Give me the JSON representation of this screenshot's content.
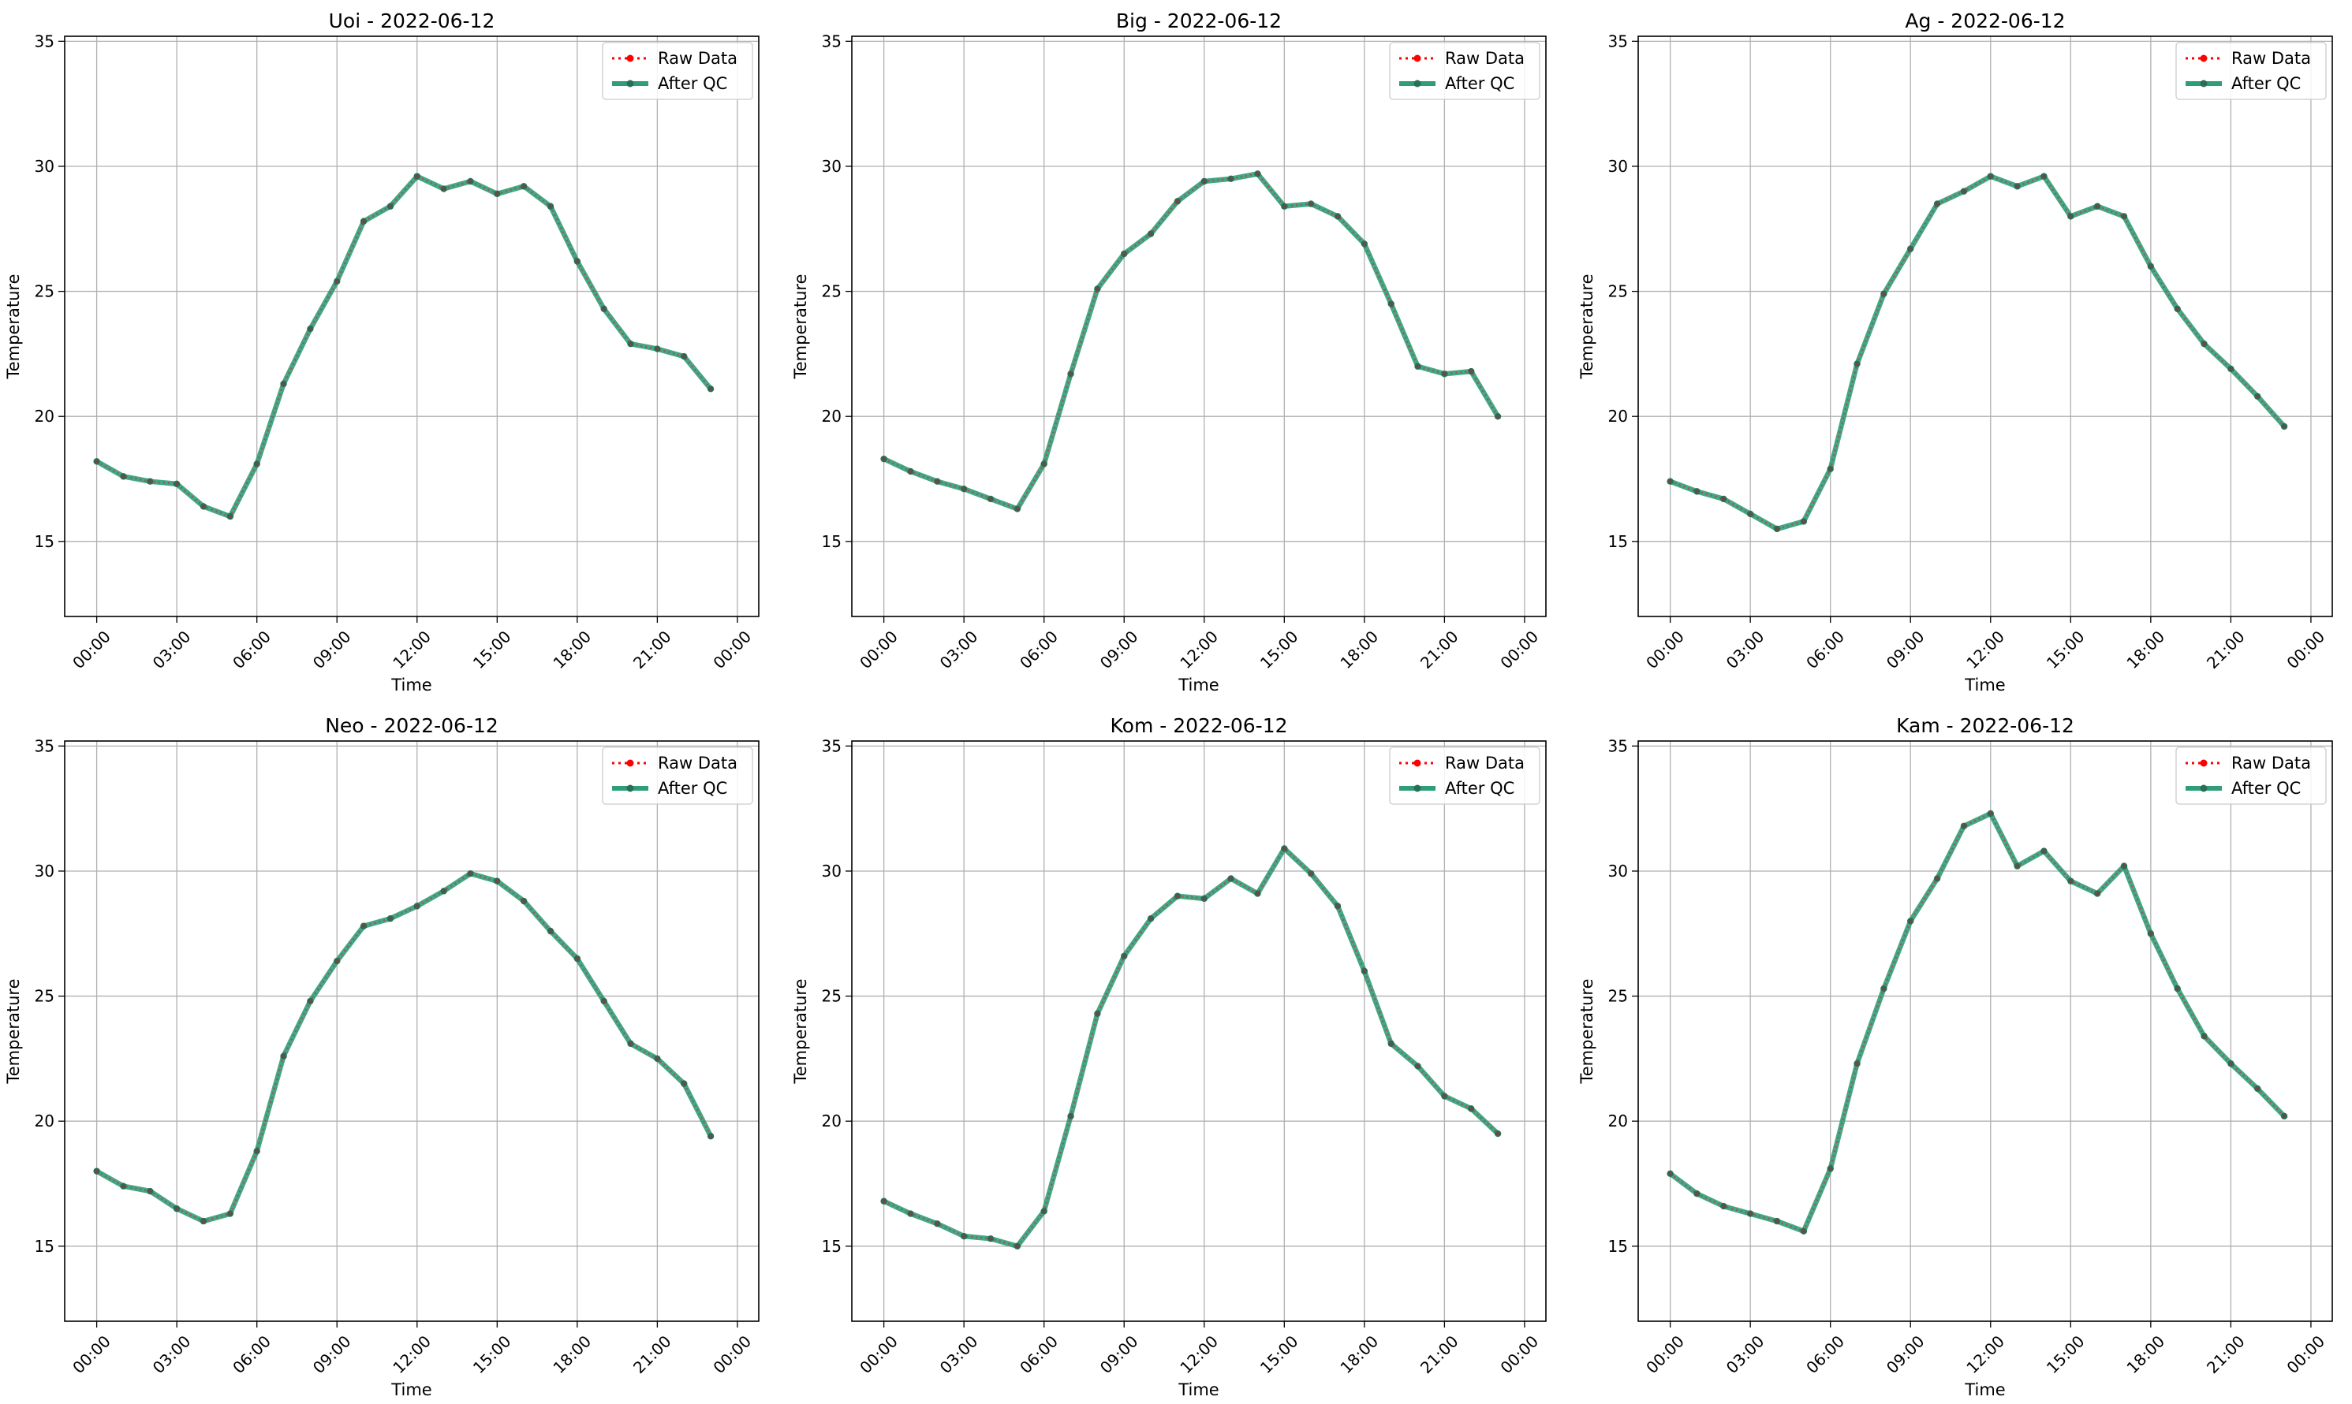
{
  "colors": {
    "raw": "#ff0000",
    "qc": "#2e9e7a",
    "qc_marker": "#2a6e5a",
    "grid": "#b0b0b0",
    "frame": "#000000"
  },
  "legend": {
    "raw_label": "Raw Data",
    "qc_label": "After QC",
    "placement": "upper right"
  },
  "chart_data": [
    {
      "type": "line",
      "title": "Uoi - 2022-06-12",
      "xlabel": "Time",
      "ylabel": "Temperature",
      "ylim": [
        12,
        35.2
      ],
      "yticks": [
        15,
        20,
        25,
        30,
        35
      ],
      "xlim_hours": [
        -1.2,
        24.8
      ],
      "xticks": [
        "00:00",
        "03:00",
        "06:00",
        "09:00",
        "12:00",
        "15:00",
        "18:00",
        "21:00",
        "00:00"
      ],
      "grid": true,
      "series": [
        {
          "name": "Raw Data",
          "values": [
            18.2,
            17.6,
            17.4,
            17.3,
            16.4,
            16.0,
            18.1,
            21.3,
            23.5,
            25.4,
            27.8,
            28.4,
            29.6,
            29.1,
            29.4,
            28.9,
            29.2,
            28.4,
            26.2,
            24.3,
            22.9,
            22.7,
            22.4,
            21.1
          ]
        },
        {
          "name": "After QC",
          "values": [
            18.2,
            17.6,
            17.4,
            17.3,
            16.4,
            16.0,
            18.1,
            21.3,
            23.5,
            25.4,
            27.8,
            28.4,
            29.6,
            29.1,
            29.4,
            28.9,
            29.2,
            28.4,
            26.2,
            24.3,
            22.9,
            22.7,
            22.4,
            21.1
          ]
        }
      ]
    },
    {
      "type": "line",
      "title": "Big - 2022-06-12",
      "xlabel": "Time",
      "ylabel": "Temperature",
      "ylim": [
        12,
        35.2
      ],
      "yticks": [
        15,
        20,
        25,
        30,
        35
      ],
      "xlim_hours": [
        -1.2,
        24.8
      ],
      "xticks": [
        "00:00",
        "03:00",
        "06:00",
        "09:00",
        "12:00",
        "15:00",
        "18:00",
        "21:00",
        "00:00"
      ],
      "grid": true,
      "series": [
        {
          "name": "Raw Data",
          "values": [
            18.3,
            17.8,
            17.4,
            17.1,
            16.7,
            16.3,
            18.1,
            21.7,
            25.1,
            26.5,
            27.3,
            28.6,
            29.4,
            29.5,
            29.7,
            28.4,
            28.5,
            28.0,
            26.9,
            24.5,
            22.0,
            21.7,
            21.8,
            20.0
          ]
        },
        {
          "name": "After QC",
          "values": [
            18.3,
            17.8,
            17.4,
            17.1,
            16.7,
            16.3,
            18.1,
            21.7,
            25.1,
            26.5,
            27.3,
            28.6,
            29.4,
            29.5,
            29.7,
            28.4,
            28.5,
            28.0,
            26.9,
            24.5,
            22.0,
            21.7,
            21.8,
            20.0
          ]
        }
      ]
    },
    {
      "type": "line",
      "title": "Ag - 2022-06-12",
      "xlabel": "Time",
      "ylabel": "Temperature",
      "ylim": [
        12,
        35.2
      ],
      "yticks": [
        15,
        20,
        25,
        30,
        35
      ],
      "xlim_hours": [
        -1.2,
        24.8
      ],
      "xticks": [
        "00:00",
        "03:00",
        "06:00",
        "09:00",
        "12:00",
        "15:00",
        "18:00",
        "21:00",
        "00:00"
      ],
      "grid": true,
      "series": [
        {
          "name": "Raw Data",
          "values": [
            17.4,
            17.0,
            16.7,
            16.1,
            15.5,
            15.8,
            17.9,
            22.1,
            24.9,
            26.7,
            28.5,
            29.0,
            29.6,
            29.2,
            29.6,
            28.0,
            28.4,
            28.0,
            26.0,
            24.3,
            22.9,
            21.9,
            20.8,
            19.6
          ]
        },
        {
          "name": "After QC",
          "values": [
            17.4,
            17.0,
            16.7,
            16.1,
            15.5,
            15.8,
            17.9,
            22.1,
            24.9,
            26.7,
            28.5,
            29.0,
            29.6,
            29.2,
            29.6,
            28.0,
            28.4,
            28.0,
            26.0,
            24.3,
            22.9,
            21.9,
            20.8,
            19.6
          ]
        }
      ]
    },
    {
      "type": "line",
      "title": "Neo - 2022-06-12",
      "xlabel": "Time",
      "ylabel": "Temperature",
      "ylim": [
        12,
        35.2
      ],
      "yticks": [
        15,
        20,
        25,
        30,
        35
      ],
      "xlim_hours": [
        -1.2,
        24.8
      ],
      "xticks": [
        "00:00",
        "03:00",
        "06:00",
        "09:00",
        "12:00",
        "15:00",
        "18:00",
        "21:00",
        "00:00"
      ],
      "grid": true,
      "series": [
        {
          "name": "Raw Data",
          "values": [
            18.0,
            17.4,
            17.2,
            16.5,
            16.0,
            16.3,
            18.8,
            22.6,
            24.8,
            26.4,
            27.8,
            28.1,
            28.6,
            29.2,
            29.9,
            29.6,
            28.8,
            27.6,
            26.5,
            24.8,
            23.1,
            22.5,
            21.5,
            19.4
          ]
        },
        {
          "name": "After QC",
          "values": [
            18.0,
            17.4,
            17.2,
            16.5,
            16.0,
            16.3,
            18.8,
            22.6,
            24.8,
            26.4,
            27.8,
            28.1,
            28.6,
            29.2,
            29.9,
            29.6,
            28.8,
            27.6,
            26.5,
            24.8,
            23.1,
            22.5,
            21.5,
            19.4
          ]
        }
      ]
    },
    {
      "type": "line",
      "title": "Kom - 2022-06-12",
      "xlabel": "Time",
      "ylabel": "Temperature",
      "ylim": [
        12,
        35.2
      ],
      "yticks": [
        15,
        20,
        25,
        30,
        35
      ],
      "xlim_hours": [
        -1.2,
        24.8
      ],
      "xticks": [
        "00:00",
        "03:00",
        "06:00",
        "09:00",
        "12:00",
        "15:00",
        "18:00",
        "21:00",
        "00:00"
      ],
      "grid": true,
      "series": [
        {
          "name": "Raw Data",
          "values": [
            16.8,
            16.3,
            15.9,
            15.4,
            15.3,
            15.0,
            16.4,
            20.2,
            24.3,
            26.6,
            28.1,
            29.0,
            28.9,
            29.7,
            29.1,
            30.9,
            29.9,
            28.6,
            26.0,
            23.1,
            22.2,
            21.0,
            20.5,
            19.5
          ]
        },
        {
          "name": "After QC",
          "values": [
            16.8,
            16.3,
            15.9,
            15.4,
            15.3,
            15.0,
            16.4,
            20.2,
            24.3,
            26.6,
            28.1,
            29.0,
            28.9,
            29.7,
            29.1,
            30.9,
            29.9,
            28.6,
            26.0,
            23.1,
            22.2,
            21.0,
            20.5,
            19.5
          ]
        }
      ]
    },
    {
      "type": "line",
      "title": "Kam - 2022-06-12",
      "xlabel": "Time",
      "ylabel": "Temperature",
      "ylim": [
        12,
        35.2
      ],
      "yticks": [
        15,
        20,
        25,
        30,
        35
      ],
      "xlim_hours": [
        -1.2,
        24.8
      ],
      "xticks": [
        "00:00",
        "03:00",
        "06:00",
        "09:00",
        "12:00",
        "15:00",
        "18:00",
        "21:00",
        "00:00"
      ],
      "grid": true,
      "series": [
        {
          "name": "Raw Data",
          "values": [
            17.9,
            17.1,
            16.6,
            16.3,
            16.0,
            15.6,
            18.1,
            22.3,
            25.3,
            28.0,
            29.7,
            31.8,
            32.3,
            30.2,
            30.8,
            29.6,
            29.1,
            30.2,
            27.5,
            25.3,
            23.4,
            22.3,
            21.3,
            20.2
          ]
        },
        {
          "name": "After QC",
          "values": [
            17.9,
            17.1,
            16.6,
            16.3,
            16.0,
            15.6,
            18.1,
            22.3,
            25.3,
            28.0,
            29.7,
            31.8,
            32.3,
            30.2,
            30.8,
            29.6,
            29.1,
            30.2,
            27.5,
            25.3,
            23.4,
            22.3,
            21.3,
            20.2
          ]
        }
      ]
    }
  ]
}
